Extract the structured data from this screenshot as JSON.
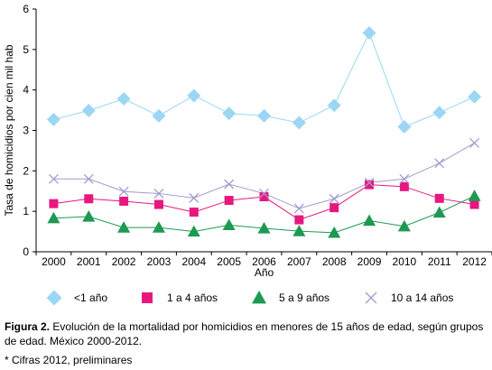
{
  "chart_data": {
    "type": "line",
    "xlabel": "Año",
    "ylabel": "Tasa de homicidios por cien mil hab",
    "ylim": [
      0,
      6
    ],
    "yticks": [
      "0",
      "1",
      "2",
      "3",
      "4",
      "5",
      "6"
    ],
    "categories": [
      "2000",
      "2001",
      "2002",
      "2003",
      "2004",
      "2005",
      "2006",
      "2007",
      "2008",
      "2009",
      "2010",
      "2011",
      "2012"
    ],
    "grid": false,
    "legend_position": "bottom",
    "series": [
      {
        "name": "<1 año",
        "color": "#9bd7f5",
        "marker": "diamond",
        "values": [
          3.27,
          3.49,
          3.78,
          3.36,
          3.86,
          3.42,
          3.36,
          3.19,
          3.62,
          5.41,
          3.09,
          3.44,
          3.83
        ]
      },
      {
        "name": "1 a 4 años",
        "color": "#e8177f",
        "marker": "square",
        "values": [
          1.19,
          1.31,
          1.25,
          1.17,
          0.98,
          1.27,
          1.36,
          0.79,
          1.09,
          1.66,
          1.61,
          1.32,
          1.17
        ]
      },
      {
        "name": "5 a 9 años",
        "color": "#1d9a52",
        "marker": "triangle",
        "values": [
          0.83,
          0.87,
          0.6,
          0.6,
          0.5,
          0.66,
          0.58,
          0.51,
          0.47,
          0.77,
          0.63,
          0.97,
          1.38
        ]
      },
      {
        "name": "10 a 14 años",
        "color": "#a39ad0",
        "marker": "cross",
        "values": [
          1.8,
          1.8,
          1.49,
          1.44,
          1.33,
          1.67,
          1.44,
          1.07,
          1.31,
          1.71,
          1.8,
          2.19,
          2.69
        ]
      }
    ]
  },
  "caption": {
    "label": "Figura 2.",
    "text": " Evolución de la mortalidad por homicidios en menores de 15 años de edad, según grupos de edad. México 2000-2012."
  },
  "note": "* Cifras 2012, preliminares"
}
